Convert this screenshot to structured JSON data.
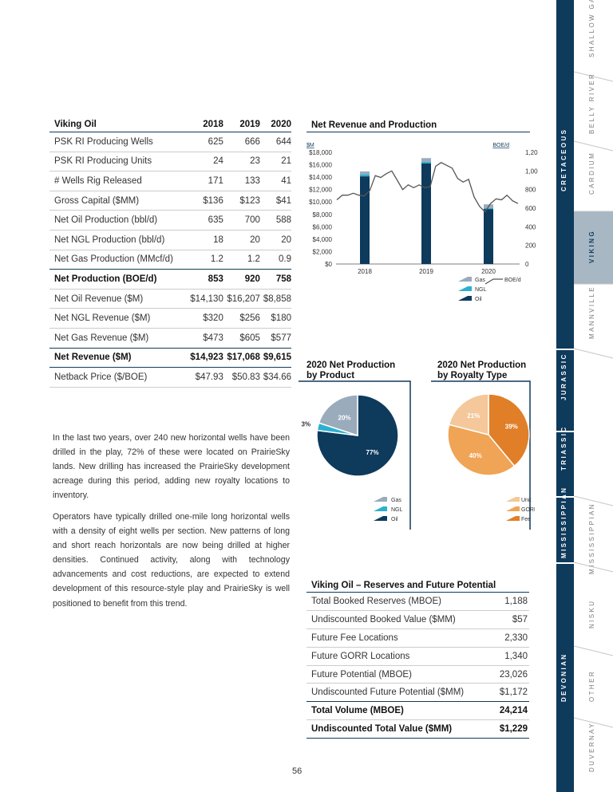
{
  "production_table": {
    "header": [
      "Viking Oil",
      "2018",
      "2019",
      "2020"
    ],
    "rows": [
      {
        "label": "PSK RI Producing Wells",
        "values": [
          "625",
          "666",
          "644"
        ],
        "bold": false
      },
      {
        "label": "PSK RI Producing Units",
        "values": [
          "24",
          "23",
          "21"
        ],
        "bold": false
      },
      {
        "label": "# Wells Rig Released",
        "values": [
          "171",
          "133",
          "41"
        ],
        "bold": false
      },
      {
        "label": "Gross Capital ($MM)",
        "values": [
          "$136",
          "$123",
          "$41"
        ],
        "bold": false
      },
      {
        "label": "Net Oil Production (bbl/d)",
        "values": [
          "635",
          "700",
          "588"
        ],
        "bold": false
      },
      {
        "label": "Net NGL Production (bbl/d)",
        "values": [
          "18",
          "20",
          "20"
        ],
        "bold": false
      },
      {
        "label": "Net Gas Production (MMcf/d)",
        "values": [
          "1.2",
          "1.2",
          "0.9"
        ],
        "bold": false
      },
      {
        "label": "Net Production (BOE/d)",
        "values": [
          "853",
          "920",
          "758"
        ],
        "bold": true
      },
      {
        "label": "Net Oil Revenue ($M)",
        "values": [
          "$14,130",
          "$16,207",
          "$8,858"
        ],
        "bold": false
      },
      {
        "label": "Net NGL Revenue ($M)",
        "values": [
          "$320",
          "$256",
          "$180"
        ],
        "bold": false
      },
      {
        "label": "Net Gas Revenue ($M)",
        "values": [
          "$473",
          "$605",
          "$577"
        ],
        "bold": false
      },
      {
        "label": "Net Revenue ($M)",
        "values": [
          "$14,923",
          "$17,068",
          "$9,615"
        ],
        "bold": true
      },
      {
        "label": "Netback Price ($/BOE)",
        "values": [
          "$47.93",
          "$50.83",
          "$34.66"
        ],
        "bold": false
      }
    ]
  },
  "paragraphs": [
    "In the last two years, over 240 new horizontal wells have been drilled in the play, 72% of these were located on PrairieSky lands. New drilling has increased the PrairieSky development acreage during this period, adding new royalty locations to inventory.",
    "Operators have typically drilled one-mile long horizontal wells with a density of eight wells per section. New patterns of long and short reach horizontals are now being drilled at higher densities. Continued activity, along with technology advancements and cost reductions, are expected to extend development of this resource-style play and PrairieSky is well positioned to benefit from this trend."
  ],
  "page_number": "56",
  "colors": {
    "navy": "#0e3a5c",
    "gas": "#9aabbb",
    "ngl": "#2bb0cf",
    "oil": "#0e3a5c",
    "unit": "#f4c89a",
    "gorr": "#f0a455",
    "fee": "#e07f27",
    "sidebar": "#0e3a5c",
    "sidebar_active": "#a7b7c3"
  },
  "revenue_chart": {
    "title": "Net Revenue and Production",
    "left_unit": "$M",
    "right_unit": "BOE/d",
    "legend": [
      "Gas",
      "NGL",
      "Oil"
    ],
    "line_legend": "BOE/d"
  },
  "product_pie": {
    "title": "2020 Net Production",
    "subtitle": "by Product",
    "legend": [
      "Gas",
      "NGL",
      "Oil"
    ]
  },
  "royalty_pie": {
    "title": "2020 Net Production",
    "subtitle": "by Royalty Type",
    "legend": [
      "Unit",
      "GORR",
      "Fee"
    ]
  },
  "chart_data": [
    {
      "type": "bar",
      "title": "Net Revenue and Production",
      "categories": [
        "2018",
        "2019",
        "2020"
      ],
      "series": [
        {
          "name": "Oil",
          "values": [
            14130,
            16207,
            8858
          ]
        },
        {
          "name": "NGL",
          "values": [
            320,
            256,
            180
          ]
        },
        {
          "name": "Gas",
          "values": [
            473,
            605,
            577
          ]
        }
      ],
      "line_series": {
        "name": "BOE/d",
        "values": [
          690,
          740,
          740,
          760,
          740,
          730,
          790,
          950,
          930,
          970,
          1000,
          900,
          800,
          850,
          820,
          850,
          820,
          830,
          1050,
          1090,
          1060,
          1030,
          920,
          880,
          910,
          720,
          620,
          560,
          650,
          700,
          690,
          740,
          680,
          650
        ]
      },
      "ylim": [
        0,
        18000
      ],
      "y2lim": [
        0,
        1200
      ],
      "yticks": [
        "$0",
        "$2,000",
        "$4,000",
        "$6,000",
        "$8,000",
        "$10,000",
        "$12,000",
        "$14,000",
        "$16,000",
        "$18,000"
      ],
      "y2ticks": [
        "0",
        "200",
        "400",
        "600",
        "800",
        "1,000",
        "1,200"
      ],
      "ylabel": "$M",
      "y2label": "BOE/d"
    },
    {
      "type": "pie",
      "title": "2020 Net Production by Product",
      "labels": [
        "Oil",
        "NGL",
        "Gas"
      ],
      "values": [
        77,
        3,
        20
      ],
      "value_labels": [
        "77%",
        "3%",
        "20%"
      ]
    },
    {
      "type": "pie",
      "title": "2020 Net Production by Royalty Type",
      "labels": [
        "Fee",
        "GORR",
        "Unit"
      ],
      "values": [
        39,
        40,
        21
      ],
      "value_labels": [
        "39%",
        "40%",
        "21%"
      ]
    }
  ],
  "reserves": {
    "title": "Viking Oil – Reserves and Future Potential",
    "rows": [
      {
        "label": "Total Booked Reserves (MBOE)",
        "value": "1,188",
        "bold": false
      },
      {
        "label": "Undiscounted Booked Value ($MM)",
        "value": "$57",
        "bold": false
      },
      {
        "label": "Future Fee Locations",
        "value": "2,330",
        "bold": false
      },
      {
        "label": "Future GORR Locations",
        "value": "1,340",
        "bold": false
      },
      {
        "label": "Future Potential (MBOE)",
        "value": "23,026",
        "bold": false
      },
      {
        "label": "Undiscounted Future Potential ($MM)",
        "value": "$1,172",
        "bold": false
      },
      {
        "label": "Total Volume (MBOE)",
        "value": "24,214",
        "bold": true
      },
      {
        "label": "Undiscounted Total Value ($MM)",
        "value": "$1,229",
        "bold": true
      }
    ]
  },
  "sidebar": {
    "groups": [
      "CRETACEOUS",
      "JURASSIC",
      "TRIASSIC",
      "MISSISSIPPIAN",
      "DEVONIAN"
    ],
    "tabs": [
      "SHALLOW GAS",
      "BELLY RIVER",
      "CARDIUM",
      "VIKING",
      "MANNVILLE",
      "MISSISSIPPIAN",
      "NISKU",
      "OTHER",
      "DUVERNAY"
    ],
    "active_tab": "VIKING"
  }
}
